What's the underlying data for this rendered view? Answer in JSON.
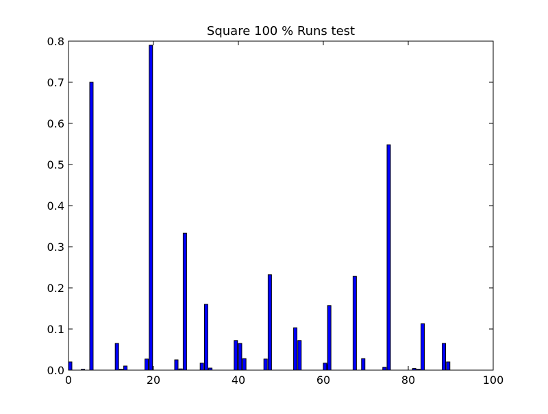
{
  "chart_data": {
    "type": "bar",
    "title": "Square 100 % Runs test",
    "xlabel": "",
    "ylabel": "",
    "xlim": [
      0,
      100
    ],
    "ylim": [
      0,
      0.8
    ],
    "xticks": [
      "0",
      "20",
      "40",
      "60",
      "80",
      "100"
    ],
    "yticks": [
      "0.0",
      "0.1",
      "0.2",
      "0.3",
      "0.4",
      "0.5",
      "0.6",
      "0.7",
      "0.8"
    ],
    "grid": false,
    "bar_color": "#0000ff",
    "bar_edge_color": "#000000",
    "bars": [
      {
        "x": 0,
        "value": 0.02
      },
      {
        "x": 3,
        "value": 0.002
      },
      {
        "x": 5,
        "value": 0.7
      },
      {
        "x": 11,
        "value": 0.065
      },
      {
        "x": 12,
        "value": 0.002
      },
      {
        "x": 13,
        "value": 0.01
      },
      {
        "x": 18,
        "value": 0.027
      },
      {
        "x": 19,
        "value": 0.79
      },
      {
        "x": 25,
        "value": 0.025
      },
      {
        "x": 26,
        "value": 0.003
      },
      {
        "x": 27,
        "value": 0.333
      },
      {
        "x": 31,
        "value": 0.017
      },
      {
        "x": 32,
        "value": 0.16
      },
      {
        "x": 33,
        "value": 0.005
      },
      {
        "x": 39,
        "value": 0.072
      },
      {
        "x": 40,
        "value": 0.065
      },
      {
        "x": 41,
        "value": 0.028
      },
      {
        "x": 46,
        "value": 0.027
      },
      {
        "x": 47,
        "value": 0.232
      },
      {
        "x": 53,
        "value": 0.103
      },
      {
        "x": 54,
        "value": 0.072
      },
      {
        "x": 60,
        "value": 0.017
      },
      {
        "x": 60.8,
        "value": 0.013
      },
      {
        "x": 61,
        "value": 0.157
      },
      {
        "x": 67,
        "value": 0.228
      },
      {
        "x": 69,
        "value": 0.028
      },
      {
        "x": 74,
        "value": 0.007
      },
      {
        "x": 75,
        "value": 0.548
      },
      {
        "x": 81,
        "value": 0.004
      },
      {
        "x": 82,
        "value": 0.002
      },
      {
        "x": 83,
        "value": 0.113
      },
      {
        "x": 88,
        "value": 0.065
      },
      {
        "x": 89,
        "value": 0.02
      }
    ]
  }
}
